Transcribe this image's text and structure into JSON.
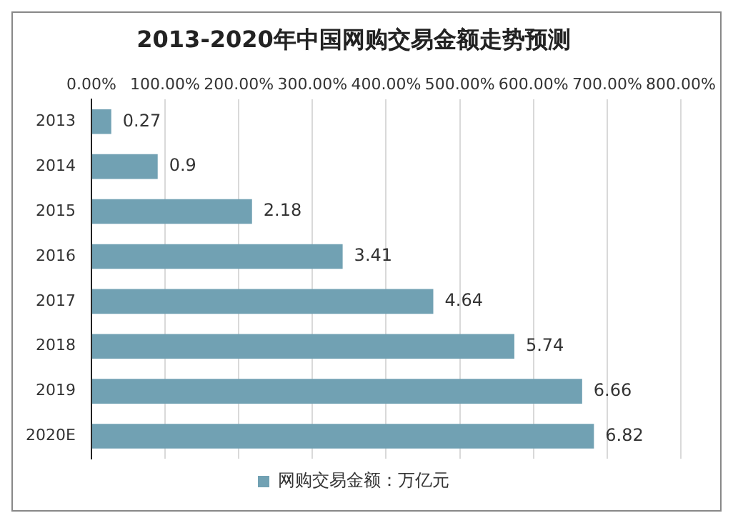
{
  "chart_data": {
    "type": "bar",
    "orientation": "horizontal",
    "title": "2013-2020年中国网购交易金额走势预测",
    "categories": [
      "2013",
      "2014",
      "2015",
      "2016",
      "2017",
      "2018",
      "2019",
      "2020E"
    ],
    "series": [
      {
        "name": "网购交易金额：万亿元",
        "color": "#71a1b3",
        "values": [
          0.27,
          0.9,
          2.18,
          3.41,
          4.64,
          5.74,
          6.66,
          6.82
        ]
      }
    ],
    "xlim": [
      0,
      8
    ],
    "xticks": [
      {
        "value": 0,
        "label": "0.00%"
      },
      {
        "value": 1,
        "label": "100.00%"
      },
      {
        "value": 2,
        "label": "200.00%"
      },
      {
        "value": 3,
        "label": "300.00%"
      },
      {
        "value": 4,
        "label": "400.00%"
      },
      {
        "value": 5,
        "label": "500.00%"
      },
      {
        "value": 6,
        "label": "600.00%"
      },
      {
        "value": 7,
        "label": "700.00%"
      },
      {
        "value": 8,
        "label": "800.00%"
      }
    ],
    "grid": "x",
    "legend": "bottom",
    "data_labels": true
  }
}
